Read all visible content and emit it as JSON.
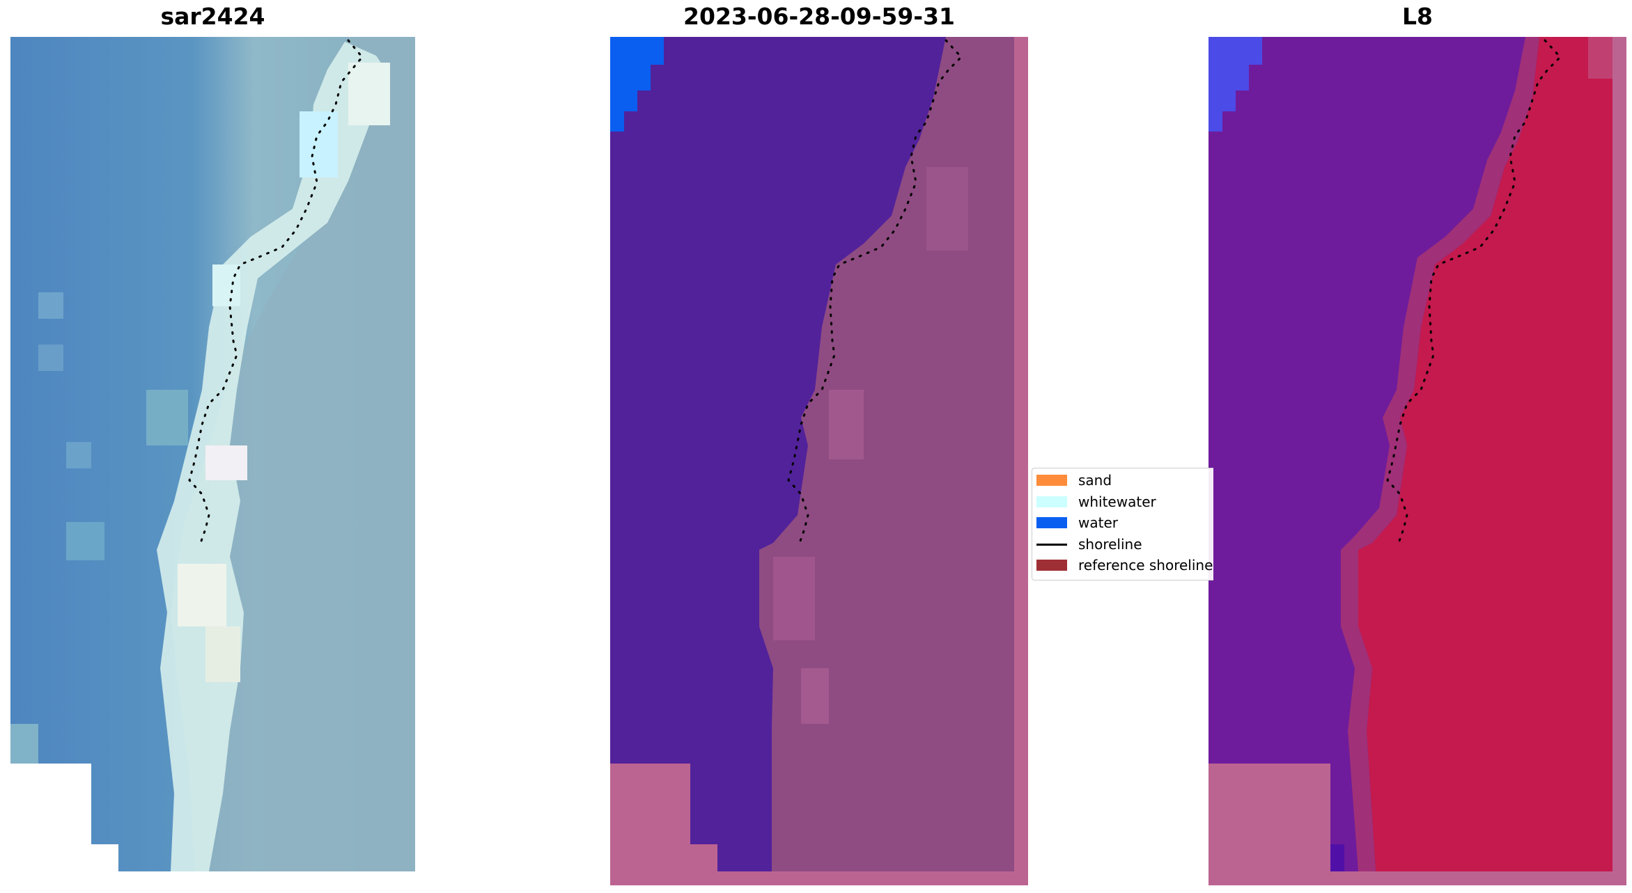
{
  "panels": [
    {
      "title": "sar2424"
    },
    {
      "title": "2023-06-28-09-59-31"
    },
    {
      "title": "L8"
    }
  ],
  "legend": {
    "items": [
      {
        "label": "sand",
        "kind": "patch",
        "color": "#ff8c3a"
      },
      {
        "label": "whitewater",
        "kind": "patch",
        "color": "#ccffff"
      },
      {
        "label": "water",
        "kind": "patch",
        "color": "#0a5ff0"
      },
      {
        "label": "shoreline",
        "kind": "line",
        "color": "#000000"
      },
      {
        "label": "reference shoreline",
        "kind": "patch",
        "color": "#9e2f35"
      }
    ]
  },
  "colors": {
    "rgb_water": "#4d87bf",
    "rgb_surf": "#d8f0f0",
    "rgb_land": "#8fb3c0",
    "class_water_overlay": "#52229a",
    "class_sand_overlay": "#8f4c82",
    "nodata_pink": "#bc6491",
    "water_class_blue": "#0a5ff0",
    "mndwi_water": "#6a1a9c",
    "mndwi_land": "#c2184a",
    "mndwi_corner_blue": "#4b4be8"
  }
}
